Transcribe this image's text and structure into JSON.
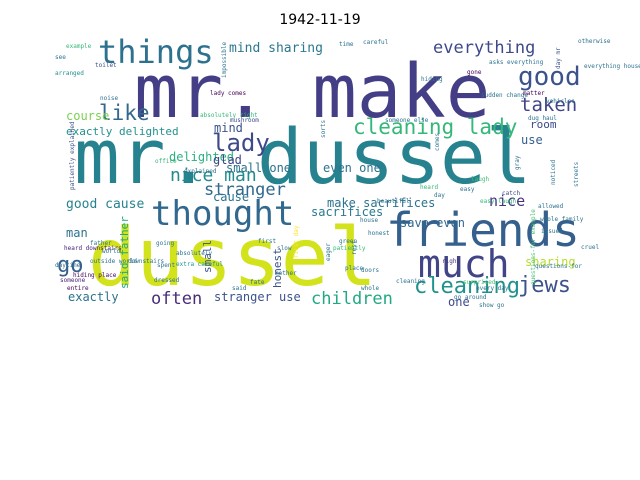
{
  "figure": {
    "title": "1942-11-19"
  },
  "cloud": {
    "words": [
      {
        "text": "mr. make",
        "color": "#433e85"
      },
      {
        "text": "mr. dussel",
        "color": "#26828e"
      },
      {
        "text": "dussel",
        "color": "#d2e21b"
      },
      {
        "text": "things",
        "color": "#2c728e"
      },
      {
        "text": "thought",
        "color": "#31688e"
      },
      {
        "text": "friends",
        "color": "#355f8d"
      },
      {
        "text": "much",
        "color": "#414487"
      },
      {
        "text": "good",
        "color": "#3b528b"
      },
      {
        "text": "everything",
        "color": "#3e4989"
      },
      {
        "text": "cleaning lady",
        "color": "#35b779"
      },
      {
        "text": "cleaning",
        "color": "#21918c"
      },
      {
        "text": "jews",
        "color": "#3b528b"
      },
      {
        "text": "children",
        "color": "#22a884"
      },
      {
        "text": "lady",
        "color": "#3e4989"
      },
      {
        "text": "like",
        "color": "#31688e"
      },
      {
        "text": "taken",
        "color": "#414487"
      },
      {
        "text": "go",
        "color": "#355f8d"
      },
      {
        "text": "often",
        "color": "#472c7a"
      },
      {
        "text": "mind sharing",
        "color": "#2a788e"
      },
      {
        "text": "nice man",
        "color": "#238a8d"
      },
      {
        "text": "stranger",
        "color": "#31688e"
      },
      {
        "text": "small one",
        "color": "#2c728e"
      },
      {
        "text": "even one",
        "color": "#2c728e"
      },
      {
        "text": "make sacrifices",
        "color": "#2c728e"
      },
      {
        "text": "good cause",
        "color": "#26828e"
      },
      {
        "text": "exactly delighted",
        "color": "#21918c"
      },
      {
        "text": "delighted",
        "color": "#2ab07f"
      },
      {
        "text": "course",
        "color": "#7ad151"
      },
      {
        "text": "room",
        "color": "#3e4989"
      },
      {
        "text": "save even",
        "color": "#31688e"
      },
      {
        "text": "sacrifices",
        "color": "#2a788e"
      },
      {
        "text": "man",
        "color": "#2c728e"
      },
      {
        "text": "nice",
        "color": "#46337f"
      },
      {
        "text": "stranger use",
        "color": "#3b528b"
      },
      {
        "text": "sharing",
        "color": "#b5de2b"
      },
      {
        "text": "exactly",
        "color": "#2c728e"
      },
      {
        "text": "one",
        "color": "#3e4989"
      },
      {
        "text": "honest",
        "color": "#3b528b"
      },
      {
        "text": "said father",
        "color": "#22a884"
      },
      {
        "text": "cause",
        "color": "#2c728e"
      },
      {
        "text": "glad",
        "color": "#414487"
      },
      {
        "text": "mind",
        "color": "#3b528b"
      },
      {
        "text": "small",
        "color": "#3b528b"
      },
      {
        "text": "use",
        "color": "#355f8d"
      },
      {
        "text": "patiently explained",
        "color": "#3b528b"
      },
      {
        "text": "questions-for example",
        "color": "#44bf70"
      },
      {
        "text": "lady comes",
        "color": "#440154"
      },
      {
        "text": "absolutely right",
        "color": "#35b779"
      },
      {
        "text": "someone else",
        "color": "#2c728e"
      },
      {
        "text": "hiding place",
        "color": "#440154"
      },
      {
        "text": "heard downstairs",
        "color": "#482475"
      },
      {
        "text": "first day",
        "color": "#fde725"
      },
      {
        "text": "careful",
        "color": "#2c728e"
      },
      {
        "text": "example",
        "color": "#35b779"
      },
      {
        "text": "toilet",
        "color": "#3b528b"
      },
      {
        "text": "arranged",
        "color": "#21918c"
      },
      {
        "text": "noise",
        "color": "#2c728e"
      },
      {
        "text": "explained",
        "color": "#2c728e"
      },
      {
        "text": "office",
        "color": "#35b779"
      },
      {
        "text": "father",
        "color": "#2a788e"
      },
      {
        "text": "daytime",
        "color": "#2c728e"
      },
      {
        "text": "someone",
        "color": "#482475"
      },
      {
        "text": "outside world",
        "color": "#2c728e"
      },
      {
        "text": "mushroom",
        "color": "#3e4989"
      },
      {
        "text": "surprised",
        "color": "#44bf70"
      },
      {
        "text": "entire",
        "color": "#440154"
      },
      {
        "text": "sorts",
        "color": "#2c728e"
      },
      {
        "text": "comes",
        "color": "#2c728e"
      },
      {
        "text": "laugh",
        "color": "#44bf70"
      },
      {
        "text": "easy laugh",
        "color": "#35b779"
      },
      {
        "text": "questions-for",
        "color": "#2c728e"
      },
      {
        "text": "place",
        "color": "#2c728e"
      },
      {
        "text": "patiently",
        "color": "#35b779"
      },
      {
        "text": "slow",
        "color": "#2c728e"
      },
      {
        "text": "day",
        "color": "#2c728e"
      },
      {
        "text": "easy",
        "color": "#2c728e"
      },
      {
        "text": "catch",
        "color": "#3e4989"
      },
      {
        "text": "heard",
        "color": "#35b779"
      },
      {
        "text": "rest",
        "color": "#2c728e"
      },
      {
        "text": "right",
        "color": "#46337f"
      },
      {
        "text": "hiding",
        "color": "#2c728e"
      },
      {
        "text": "gone",
        "color": "#440154"
      },
      {
        "text": "sudden change",
        "color": "#2c728e"
      },
      {
        "text": "matter",
        "color": "#440154"
      },
      {
        "text": "vehicles",
        "color": "#2c728e"
      },
      {
        "text": "day mr",
        "color": "#3b528b"
      },
      {
        "text": "otherwise",
        "color": "#2c728e"
      },
      {
        "text": "everything house",
        "color": "#2c728e"
      },
      {
        "text": "asks everything",
        "color": "#2c728e"
      },
      {
        "text": "noticed",
        "color": "#2c728e"
      },
      {
        "text": "allowed",
        "color": "#2c728e"
      },
      {
        "text": "issued",
        "color": "#2c728e"
      },
      {
        "text": "whole family",
        "color": "#2c728e"
      },
      {
        "text": "impossible",
        "color": "#2c728e"
      },
      {
        "text": "absolutely",
        "color": "#2c728e"
      },
      {
        "text": "extra careful",
        "color": "#21918c"
      },
      {
        "text": "said",
        "color": "#2c728e"
      },
      {
        "text": "doors",
        "color": "#2c728e"
      },
      {
        "text": "green",
        "color": "#2c728e"
      },
      {
        "text": "honest",
        "color": "#2c728e"
      },
      {
        "text": "house",
        "color": "#2c728e"
      },
      {
        "text": "dug haul",
        "color": "#2c728e"
      },
      {
        "text": "gray",
        "color": "#2c728e"
      },
      {
        "text": "streets",
        "color": "#2c728e"
      },
      {
        "text": "cleaning",
        "color": "#2c728e"
      },
      {
        "text": "see",
        "color": "#2c728e"
      },
      {
        "text": "time",
        "color": "#2c728e"
      },
      {
        "text": "eager",
        "color": "#2c728e"
      },
      {
        "text": "world",
        "color": "#2c728e"
      },
      {
        "text": "show go",
        "color": "#2c728e"
      },
      {
        "text": "every day",
        "color": "#2c728e"
      },
      {
        "text": "whole",
        "color": "#2c728e"
      },
      {
        "text": "go around",
        "color": "#2c728e"
      },
      {
        "text": "cruel",
        "color": "#2c728e"
      },
      {
        "text": "dressed",
        "color": "#2c728e"
      },
      {
        "text": "going",
        "color": "#2c728e"
      },
      {
        "text": "spent",
        "color": "#2c728e"
      },
      {
        "text": "fate",
        "color": "#2c728e"
      },
      {
        "text": "first",
        "color": "#2c728e"
      },
      {
        "text": "mother",
        "color": "#2c728e"
      },
      {
        "text": "downstairs",
        "color": "#2c728e"
      },
      {
        "text": "beautiful",
        "color": "#2c728e"
      }
    ]
  }
}
